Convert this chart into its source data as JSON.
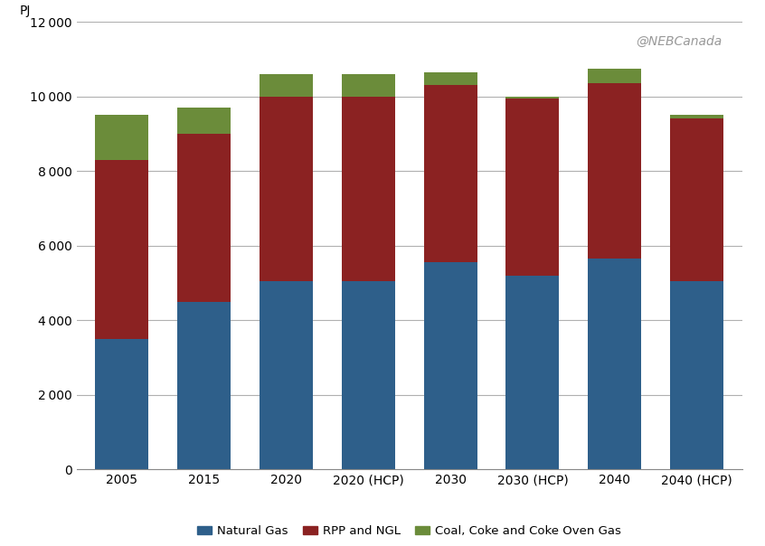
{
  "categories": [
    "2005",
    "2015",
    "2020",
    "2020 (HCP)",
    "2030",
    "2030 (HCP)",
    "2040",
    "2040 (HCP)"
  ],
  "natural_gas": [
    3500,
    4500,
    5050,
    5050,
    5550,
    5200,
    5650,
    5050
  ],
  "rpp_ngl": [
    4800,
    4500,
    4950,
    4950,
    4750,
    4750,
    4700,
    4350
  ],
  "coal_coke": [
    1200,
    700,
    600,
    600,
    350,
    50,
    400,
    100
  ],
  "colors": {
    "natural_gas": "#2E5F8A",
    "rpp_ngl": "#8B2222",
    "coal_coke": "#6B8C3A"
  },
  "ylim": [
    0,
    12000
  ],
  "yticks": [
    0,
    2000,
    4000,
    6000,
    8000,
    10000,
    12000
  ],
  "ylabel": "PJ",
  "watermark": "@NEBCanada",
  "legend_labels": [
    "Natural Gas",
    "RPP and NGL",
    "Coal, Coke and Coke Oven Gas"
  ],
  "bar_width": 0.65,
  "background_color": "#FFFFFF",
  "grid_color": "#B0B0B0"
}
